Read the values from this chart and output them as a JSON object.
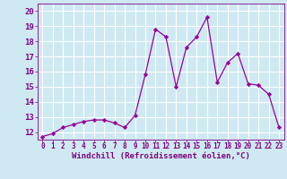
{
  "x": [
    0,
    1,
    2,
    3,
    4,
    5,
    6,
    7,
    8,
    9,
    10,
    11,
    12,
    13,
    14,
    15,
    16,
    17,
    18,
    19,
    20,
    21,
    22,
    23
  ],
  "y": [
    11.7,
    11.9,
    12.3,
    12.5,
    12.7,
    12.8,
    12.8,
    12.6,
    12.3,
    13.1,
    15.8,
    18.8,
    18.3,
    15.0,
    17.6,
    18.3,
    19.6,
    15.3,
    16.6,
    17.2,
    15.2,
    15.1,
    14.5,
    12.3
  ],
  "line_color": "#990099",
  "marker": "D",
  "marker_size": 2.2,
  "bg_color": "#cee9f2",
  "grid_color": "#ffffff",
  "ylabel_ticks": [
    12,
    13,
    14,
    15,
    16,
    17,
    18,
    19,
    20
  ],
  "xticks": [
    0,
    1,
    2,
    3,
    4,
    5,
    6,
    7,
    8,
    9,
    10,
    11,
    12,
    13,
    14,
    15,
    16,
    17,
    18,
    19,
    20,
    21,
    22,
    23
  ],
  "ylim": [
    11.5,
    20.5
  ],
  "xlim": [
    -0.5,
    23.5
  ],
  "tick_color": "#800080",
  "xlabel_color": "#800080",
  "xlabel": "Windchill (Refroidissement éolien,°C)",
  "xlabel_fontsize": 6.5,
  "ytick_fontsize": 6.5,
  "xtick_fontsize": 5.5
}
